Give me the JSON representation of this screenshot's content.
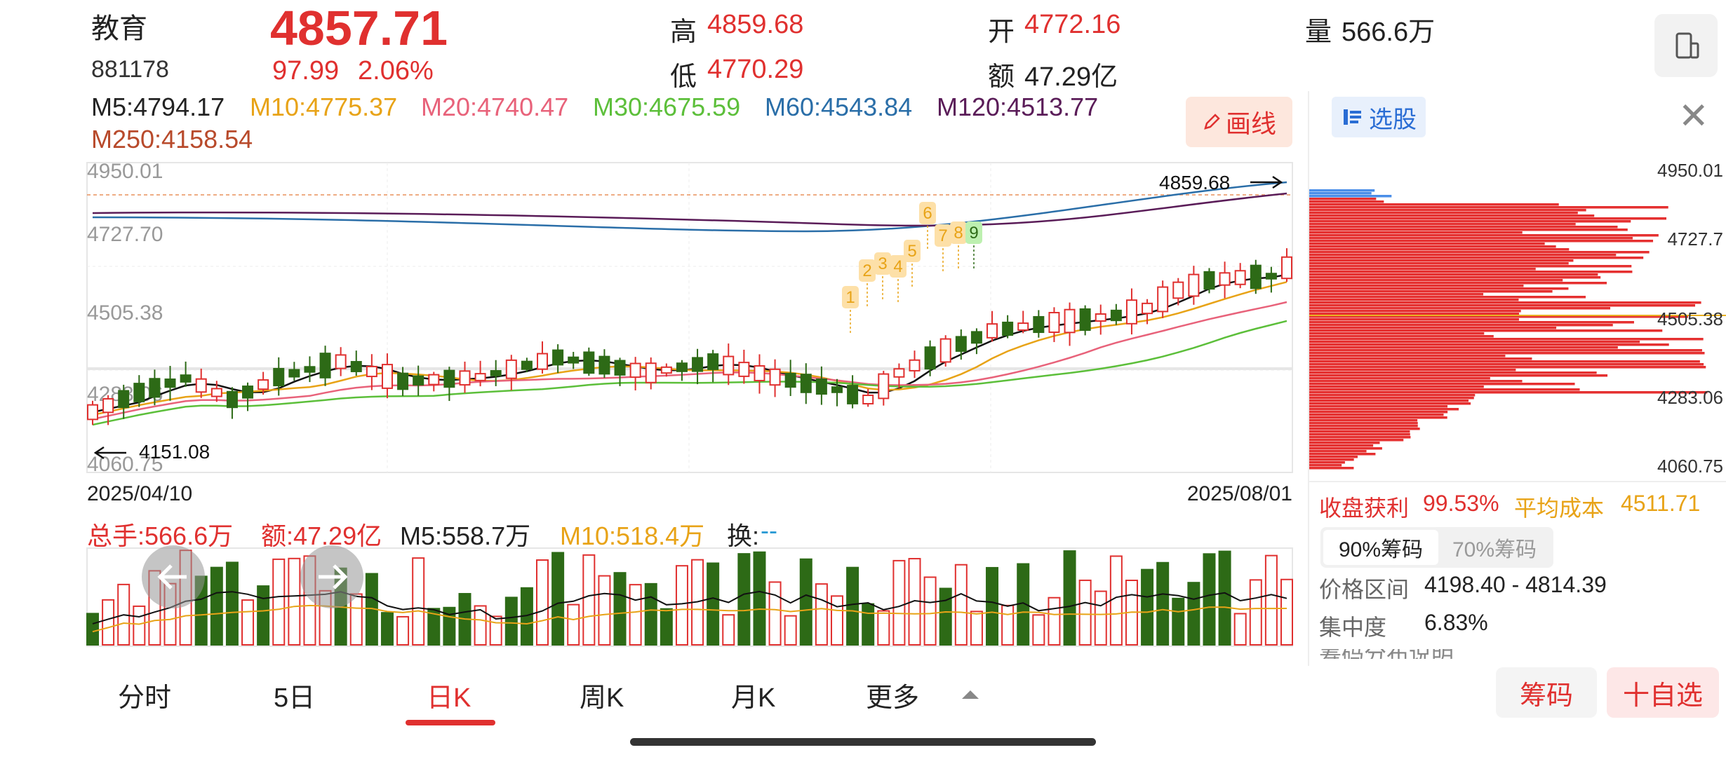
{
  "header": {
    "name": "教育",
    "code": "881178",
    "price": "4857.71",
    "change": "97.99",
    "change_pct": "2.06%",
    "high_label": "高",
    "high": "4859.68",
    "low_label": "低",
    "low": "4770.29",
    "open_label": "开",
    "open": "4772.16",
    "amount_label": "额",
    "amount": "47.29亿",
    "volume_label": "量",
    "volume": "566.6万"
  },
  "ma": [
    {
      "text": "M5:4794.17",
      "color": "#222222"
    },
    {
      "text": "M10:4775.37",
      "color": "#e8a317"
    },
    {
      "text": "M20:4740.47",
      "color": "#e8627a"
    },
    {
      "text": "M30:4675.59",
      "color": "#5cbf3a"
    },
    {
      "text": "M60:4543.84",
      "color": "#2a6ea8"
    },
    {
      "text": "M120:4513.77",
      "color": "#5a1c58"
    },
    {
      "text": "M250:4158.54",
      "color": "#b84a2b"
    }
  ],
  "draw_button": "画线",
  "draw_icon": "pencil-icon",
  "price_axis": [
    "4950.01",
    "4727.70",
    "4505.38",
    "4283.06",
    "4060.75"
  ],
  "max_marker": "4859.68",
  "min_marker": "4151.08",
  "date_start": "2025/04/10",
  "date_end": "2025/08/01",
  "volume_bar": {
    "total": "总手:566.6万",
    "amount": "额:47.29亿",
    "m5": "M5:558.7万",
    "m10": "M10:518.4万",
    "turnover_label": "换:",
    "turnover_value": "--"
  },
  "tabs": [
    "分时",
    "5日",
    "日K",
    "周K",
    "月K",
    "更多"
  ],
  "active_tab": "日K",
  "panel": {
    "select_label": "选股",
    "axis": [
      "4950.01",
      "4727.7",
      "4505.38",
      "4283.06",
      "4060.75"
    ],
    "profit_label": "收盘获利",
    "profit_value": "99.53%",
    "avg_cost_label": "平均成本",
    "avg_cost_value": "4511.71",
    "tab_90": "90%筹码",
    "tab_70": "70%筹码",
    "range_label": "价格区间",
    "range_value": "4198.40 - 4814.39",
    "concentration_label": "集中度",
    "concentration_value": "6.83%",
    "dist_note": "筹码分布说明"
  },
  "buttons": {
    "chouma": "筹码",
    "zixuan": "十自选"
  },
  "td_sequence": [
    "1",
    "2",
    "3",
    "4",
    "5",
    "6",
    "7",
    "8",
    "9"
  ],
  "colors": {
    "up": "#e0302f",
    "down": "#2d6a16",
    "accent_blue": "#2a6dd4"
  }
}
